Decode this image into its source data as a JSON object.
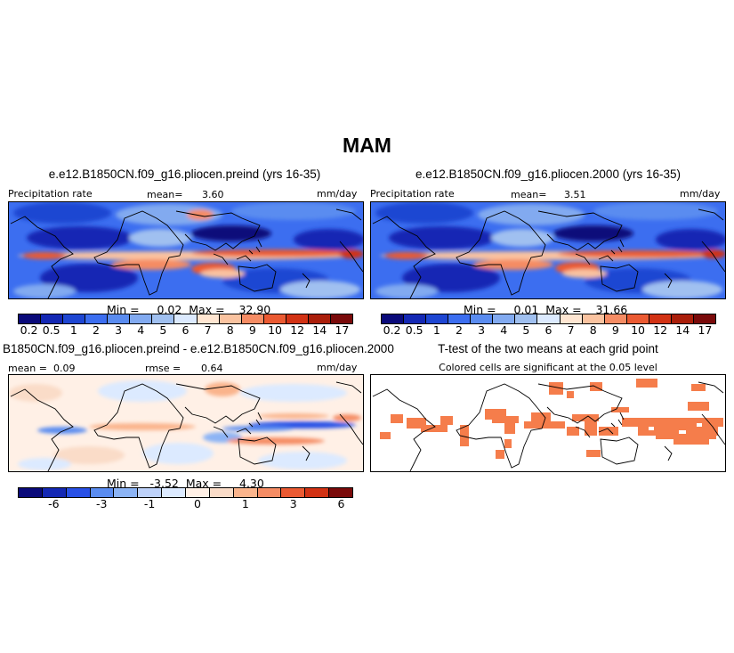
{
  "title": "MAM",
  "panels": [
    {
      "title": "e.e12.B1850CN.f09_g16.pliocen.preind (yrs 16-35)",
      "variable": "Precipitation rate",
      "stat_label": "mean=",
      "stat_value": "3.60",
      "units": "mm/day",
      "minmax": "Min =     0.02  Max =    32.90"
    },
    {
      "title": "e.e12.B1850CN.f09_g16.pliocen.2000 (yrs 16-35)",
      "variable": "Precipitation rate",
      "stat_label": "mean=",
      "stat_value": "3.51",
      "units": "mm/day",
      "minmax": "Min =     0.01  Max =    31.66"
    },
    {
      "title": "B1850CN.f09_g16.pliocen.preind - e.e12.B1850CN.f09_g16.pliocen.2000",
      "mean_label": "mean =",
      "mean_value": "0.09",
      "rmse_label": "rmse =",
      "rmse_value": "0.64",
      "units": "mm/day",
      "minmax": "Min =   -3.52  Max =     4.30"
    },
    {
      "title": "T-test of the two means at each grid point",
      "subtitle": "Colored cells are significant at the 0.05 level"
    }
  ],
  "colorbars": {
    "precip": {
      "colors": [
        "#0a0a7a",
        "#1428b4",
        "#1e46d2",
        "#3c6ef0",
        "#5a8cf0",
        "#82aaf0",
        "#a0c0f0",
        "#dceaff",
        "#ffe6d2",
        "#fac3a0",
        "#f58c64",
        "#eb5a32",
        "#d23214",
        "#aa1e0a",
        "#7a0a0a"
      ],
      "ticks": [
        "0.2",
        "0.5",
        "1",
        "2",
        "3",
        "4",
        "5",
        "6",
        "7",
        "8",
        "9",
        "10",
        "12",
        "14",
        "17"
      ]
    },
    "diff": {
      "colors": [
        "#0a0a7a",
        "#1428b4",
        "#2850e6",
        "#5a8cf0",
        "#8cb4f5",
        "#bed2fa",
        "#dceaff",
        "#fff0e6",
        "#fadcc8",
        "#fab48c",
        "#f58c64",
        "#eb5a32",
        "#d23214",
        "#7a0a0a"
      ],
      "ticks": [
        "-6",
        "-3",
        "-1",
        "0",
        "1",
        "3",
        "6"
      ]
    }
  },
  "significance_color": "#f57d4b"
}
